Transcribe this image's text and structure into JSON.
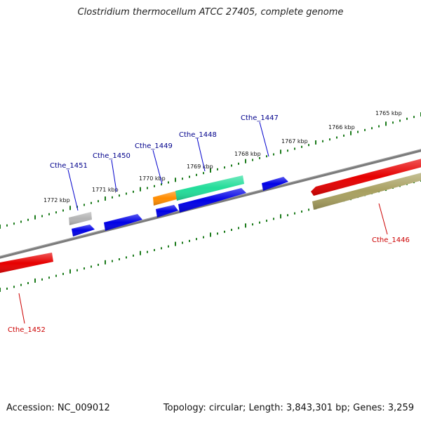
{
  "title": "Clostridium thermocellum ATCC 27405, complete genome",
  "footer": {
    "accession": "Accession: NC_009012",
    "topology": "Topology: circular; Length: 3,843,301 bp; Genes: 3,259"
  },
  "colors": {
    "backbone": "#7b7b7b",
    "ticks": "#1a7a1a",
    "label_forward": "#00008b",
    "label_reverse": "#cc0000",
    "gene_blue": "#0000e6",
    "gene_red": "#e60000",
    "gene_green": "#22dd99",
    "gene_orange": "#ff8c00",
    "gene_gray": "#b4b4b4",
    "gene_olive": "#a8a060"
  },
  "scale": {
    "unit": "kbp",
    "ticks": [
      {
        "kbp": 1765,
        "label": "1765 kbp"
      },
      {
        "kbp": 1766,
        "label": "1766 kbp"
      },
      {
        "kbp": 1767,
        "label": "1767 kbp"
      },
      {
        "kbp": 1768,
        "label": "1768 kbp"
      },
      {
        "kbp": 1769,
        "label": "1769 kbp"
      },
      {
        "kbp": 1770,
        "label": "1770 kbp"
      },
      {
        "kbp": 1771,
        "label": "1771 kbp"
      },
      {
        "kbp": 1772,
        "label": "1772 kbp"
      }
    ]
  },
  "genes": [
    {
      "label": "Cthe_1446",
      "strand": "reverse",
      "color": "gene_red"
    },
    {
      "label": "Cthe_1447",
      "strand": "forward",
      "color": "gene_blue"
    },
    {
      "label": "Cthe_1448",
      "strand": "forward",
      "color": "gene_green"
    },
    {
      "label": "Cthe_1449",
      "strand": "forward",
      "color": "gene_orange"
    },
    {
      "label": "Cthe_1450",
      "strand": "forward",
      "color": "gene_blue"
    },
    {
      "label": "Cthe_1451",
      "strand": "forward",
      "color": "gene_gray"
    },
    {
      "label": "Cthe_1452",
      "strand": "reverse",
      "color": "gene_red"
    }
  ]
}
